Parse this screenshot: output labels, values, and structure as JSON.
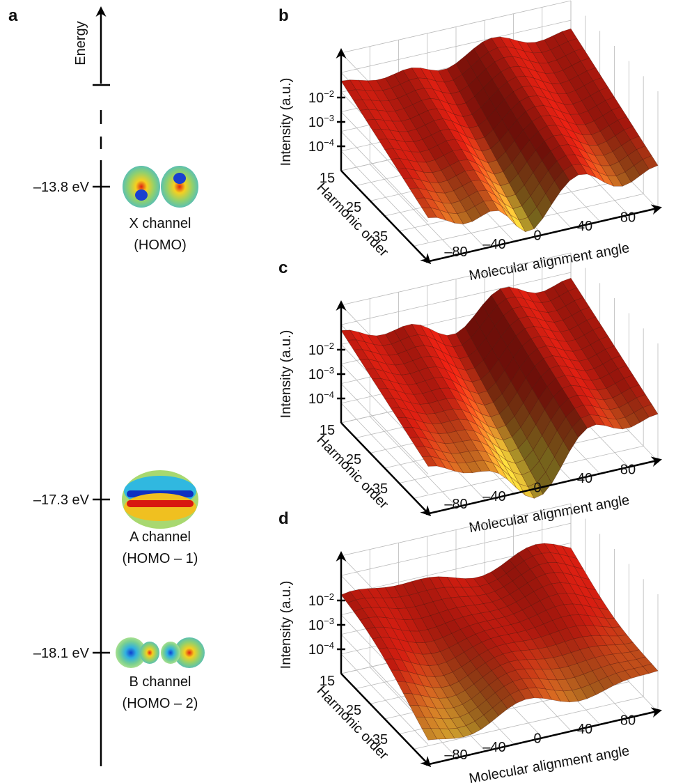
{
  "panel_a": {
    "label": "a",
    "axis_label": "Energy",
    "levels": [
      {
        "energy": "–13.8 eV",
        "channel": "X channel",
        "orbital": "(HOMO)"
      },
      {
        "energy": "–17.3 eV",
        "channel": "A channel",
        "orbital": "(HOMO – 1)"
      },
      {
        "energy": "–18.1 eV",
        "channel": "B channel",
        "orbital": "(HOMO – 2)"
      }
    ]
  },
  "panels": [
    {
      "label": "b",
      "z_label": "Intensity (a.u.)",
      "z_ticks": [
        {
          "base": "10",
          "exponent": "−2"
        },
        {
          "base": "10",
          "exponent": "−3"
        },
        {
          "base": "10",
          "exponent": "−4"
        }
      ],
      "y_label": "Harmonic order",
      "y_ticks": [
        "15",
        "25",
        "35"
      ],
      "x_label": "Molecular alignment angle",
      "x_ticks": [
        "–80",
        "–40",
        "0",
        "40",
        "80"
      ]
    },
    {
      "label": "c",
      "z_label": "Intensity (a.u.)",
      "z_ticks": [
        {
          "base": "10",
          "exponent": "−2"
        },
        {
          "base": "10",
          "exponent": "−3"
        },
        {
          "base": "10",
          "exponent": "−4"
        }
      ],
      "y_label": "Harmonic order",
      "y_ticks": [
        "15",
        "25",
        "35"
      ],
      "x_label": "Molecular alignment angle",
      "x_ticks": [
        "–80",
        "–40",
        "0",
        "40",
        "80"
      ]
    },
    {
      "label": "d",
      "z_label": "Intensity (a.u.)",
      "z_ticks": [
        {
          "base": "10",
          "exponent": "−2"
        },
        {
          "base": "10",
          "exponent": "−3"
        },
        {
          "base": "10",
          "exponent": "−4"
        }
      ],
      "y_label": "Harmonic order",
      "y_ticks": [
        "15",
        "25",
        "35"
      ],
      "x_label": "Molecular alignment angle",
      "x_ticks": [
        "–80",
        "–40",
        "0",
        "40",
        "80"
      ]
    }
  ]
}
